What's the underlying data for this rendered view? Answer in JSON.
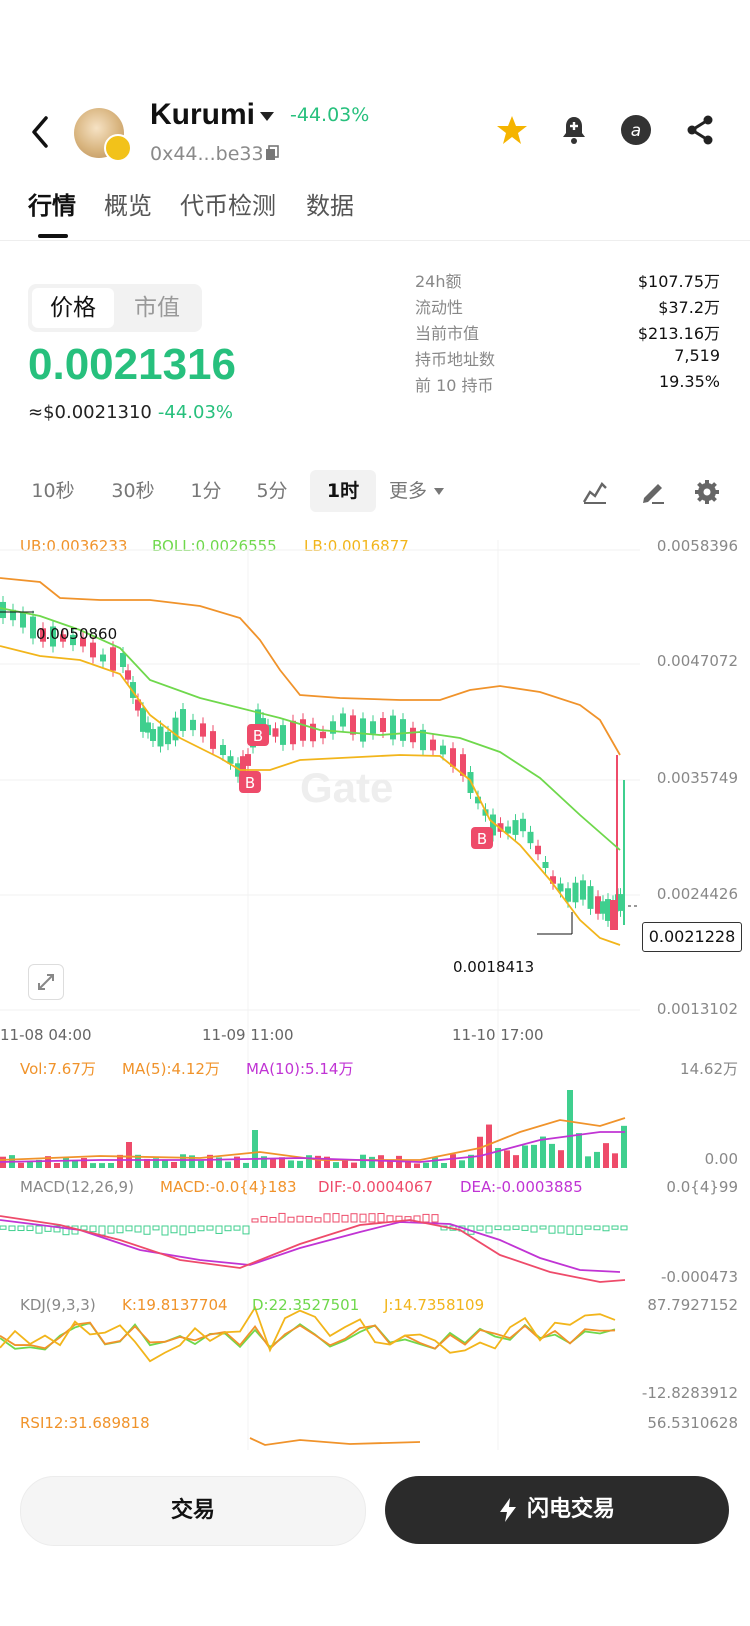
{
  "header": {
    "token_name": "Kurumi",
    "change": "-44.03%",
    "address": "0x44...be33",
    "icons": [
      "back-icon",
      "star-icon",
      "bell-plus-icon",
      "at-icon",
      "share-icon"
    ]
  },
  "tabs": [
    "行情",
    "概览",
    "代币检测",
    "数据"
  ],
  "segment": {
    "price_label": "价格",
    "mcap_label": "市值"
  },
  "price": {
    "value": "0.0021316",
    "usd": "≈$0.0021310",
    "usd_change": "-44.03%"
  },
  "stats": [
    {
      "label": "24h额",
      "value": "$107.75万"
    },
    {
      "label": "流动性",
      "value": "$37.2万"
    },
    {
      "label": "当前市值",
      "value": "$213.16万"
    },
    {
      "label": "持币地址数",
      "value": "7,519"
    },
    {
      "label": "前 10 持币",
      "value": "19.35%"
    }
  ],
  "intervals": [
    "10秒",
    "30秒",
    "1分",
    "5分",
    "1时",
    "更多"
  ],
  "chart": {
    "boll_ub": "UB:0.0036233",
    "boll_mid": "BOLL:0.0026555",
    "boll_lb": "LB:0.0016877",
    "y_ticks": [
      "0.0058396",
      "0.0047072",
      "0.0035749",
      "0.0024426",
      "0.0013102"
    ],
    "high_marker": "0.0050860",
    "low_marker": "0.0018413",
    "current_price": "0.0021228",
    "time_labels": [
      "11-08 04:00",
      "11-09 11:00",
      "11-10 17:00"
    ],
    "watermark": "Gate",
    "buy_marker": "B"
  },
  "volume": {
    "vol": "Vol:7.67万",
    "ma5": "MA(5):4.12万",
    "ma10": "MA(10):5.14万",
    "max": "14.62万",
    "min": "0.00"
  },
  "macd": {
    "label": "MACD(12,26,9)",
    "macd": "MACD:-0.0{4}183",
    "dif": "DIF:-0.0004067",
    "dea": "DEA:-0.0003885",
    "max": "0.0{4}99",
    "min": "-0.000473"
  },
  "kdj": {
    "label": "KDJ(9,3,3)",
    "k": "K:19.8137704",
    "d": "D:22.3527501",
    "j": "J:14.7358109",
    "max": "87.7927152",
    "min": "-12.8283912"
  },
  "rsi": {
    "label": "RSI12:31.689818",
    "max": "56.5310628"
  },
  "buttons": {
    "trade": "交易",
    "flash": "闪电交易"
  },
  "colors": {
    "up": "#ee4b6a",
    "down": "#3fcf8e",
    "accent": "#27c07d",
    "boll_ub": "#f0932b",
    "boll_mid": "#6fd84c",
    "boll_lb": "#f2b51b"
  }
}
